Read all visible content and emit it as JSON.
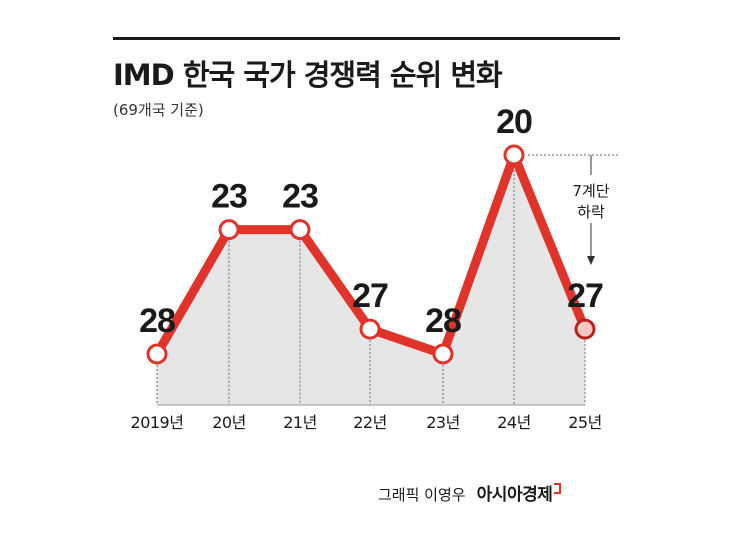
{
  "chart_data": {
    "type": "line",
    "title": "IMD 한국 국가 경쟁력 순위 변화",
    "subtitle": "(69개국 기준)",
    "categories": [
      "2019년",
      "20년",
      "21년",
      "22년",
      "23년",
      "24년",
      "25년"
    ],
    "values": [
      28,
      23,
      23,
      27,
      28,
      20,
      27
    ],
    "y_inverted": true,
    "ylim": [
      20,
      28
    ],
    "annotation": {
      "line1": "7계단",
      "line2": "하락"
    },
    "colors": {
      "line": "#e0332a",
      "fill": "#e6e6e6",
      "marker_fill": "#ffffff",
      "last_marker_fill": "#f4c9c6"
    },
    "grid": false,
    "legend": "none"
  },
  "credit": {
    "text": "그래픽 이영우",
    "brand": "아시아경제"
  }
}
